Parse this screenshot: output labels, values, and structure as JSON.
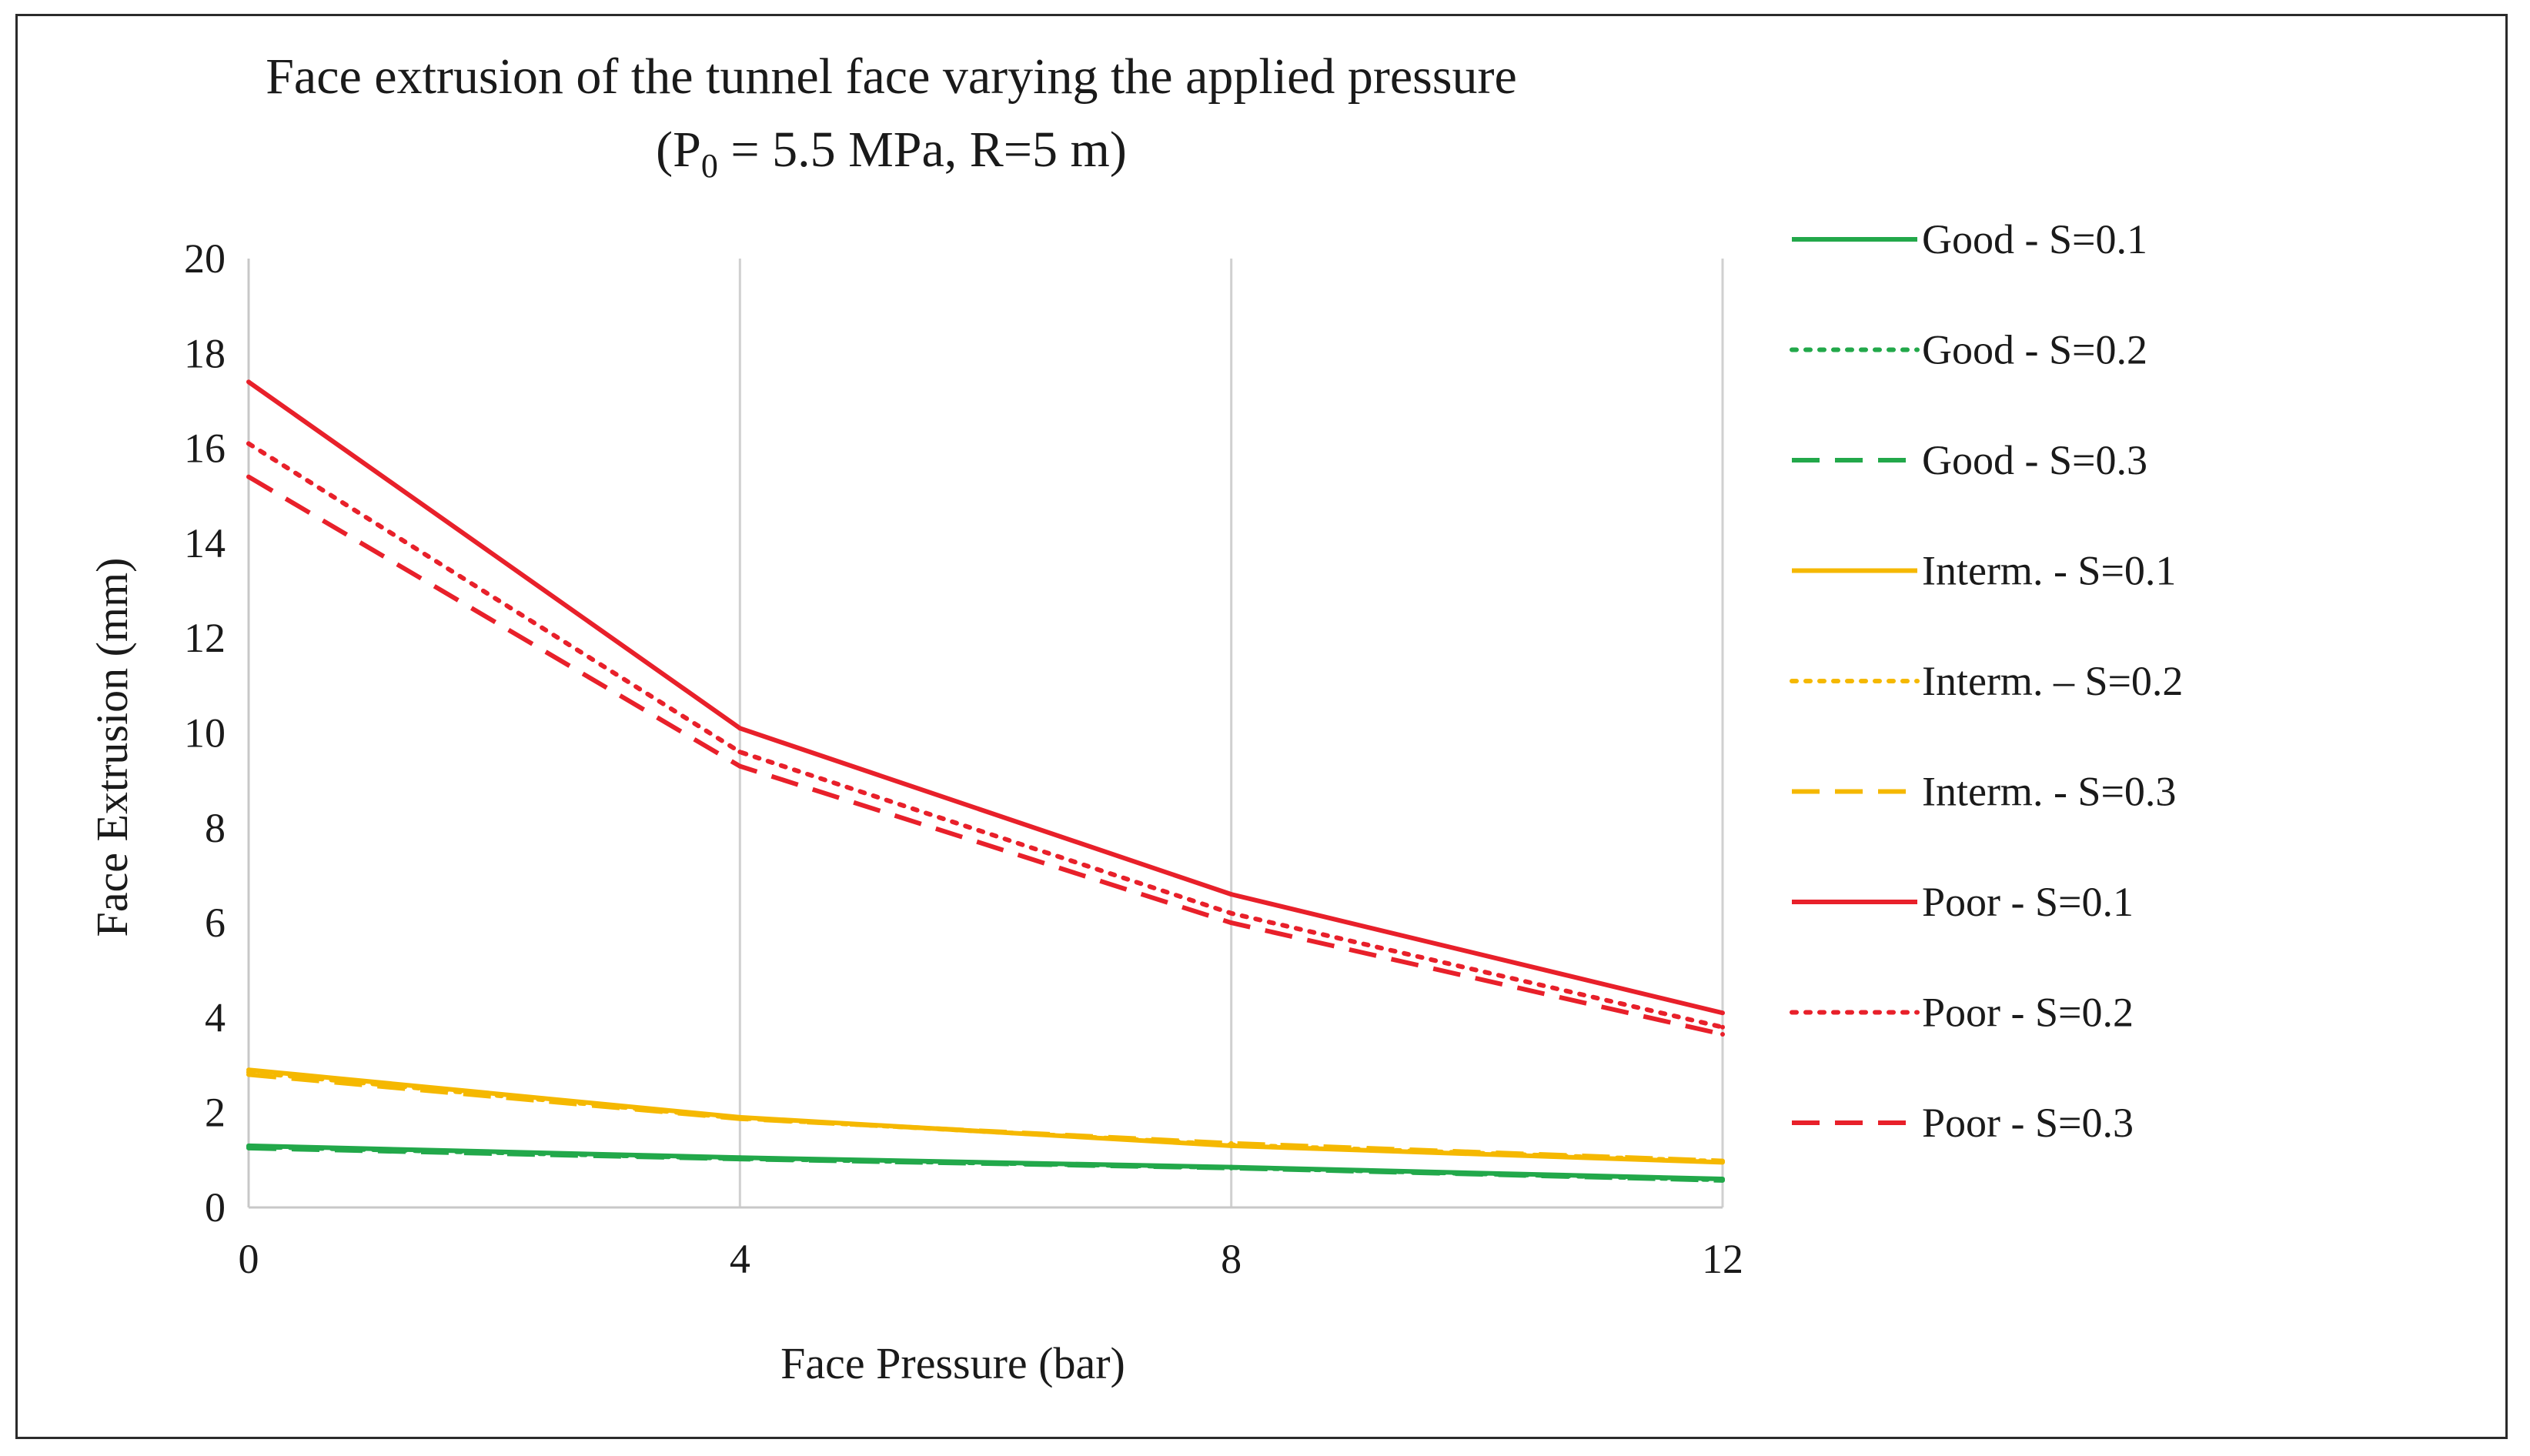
{
  "chart_data": {
    "type": "line",
    "title": "Face extrusion of the tunnel face varying the applied pressure",
    "subtitle": {
      "prefix": "(P",
      "subscript": "0",
      "suffix": " = 5.5 MPa, R=5 m)"
    },
    "xlabel": "Face Pressure (bar)",
    "ylabel": "Face Extrusion (mm)",
    "x": [
      0,
      4,
      8,
      12
    ],
    "xticks": [
      "0",
      "4",
      "8",
      "12"
    ],
    "yticks": [
      "0",
      "2",
      "4",
      "6",
      "8",
      "10",
      "12",
      "14",
      "16",
      "18",
      "20"
    ],
    "xlim": [
      0,
      12
    ],
    "ylim": [
      0,
      20
    ],
    "grid": "vertical",
    "legend_position": "right",
    "series": [
      {
        "name": "Good - S=0.1",
        "color": "#22a84a",
        "style": "solid",
        "values": [
          1.3,
          1.05,
          0.85,
          0.6
        ]
      },
      {
        "name": "Good - S=0.2",
        "color": "#22a84a",
        "style": "dotted",
        "values": [
          1.28,
          1.03,
          0.84,
          0.58
        ]
      },
      {
        "name": "Good - S=0.3",
        "color": "#22a84a",
        "style": "dashed",
        "values": [
          1.25,
          1.02,
          0.83,
          0.57
        ]
      },
      {
        "name": "Interm. - S=0.1",
        "color": "#f5b800",
        "style": "solid",
        "values": [
          2.9,
          1.9,
          1.3,
          0.95
        ]
      },
      {
        "name": "Interm. – S=0.2",
        "color": "#f5b800",
        "style": "dotted",
        "values": [
          2.85,
          1.88,
          1.32,
          0.97
        ]
      },
      {
        "name": "Interm. - S=0.3",
        "color": "#f5b800",
        "style": "dashed",
        "values": [
          2.8,
          1.87,
          1.35,
          0.98
        ]
      },
      {
        "name": "Poor - S=0.1",
        "color": "#e8202a",
        "style": "solid",
        "values": [
          17.4,
          10.1,
          6.6,
          4.1
        ]
      },
      {
        "name": "Poor - S=0.2",
        "color": "#e8202a",
        "style": "dotted",
        "values": [
          16.1,
          9.6,
          6.2,
          3.8
        ]
      },
      {
        "name": "Poor - S=0.3",
        "color": "#e8202a",
        "style": "dashed",
        "values": [
          15.4,
          9.3,
          6.0,
          3.65
        ]
      }
    ]
  }
}
